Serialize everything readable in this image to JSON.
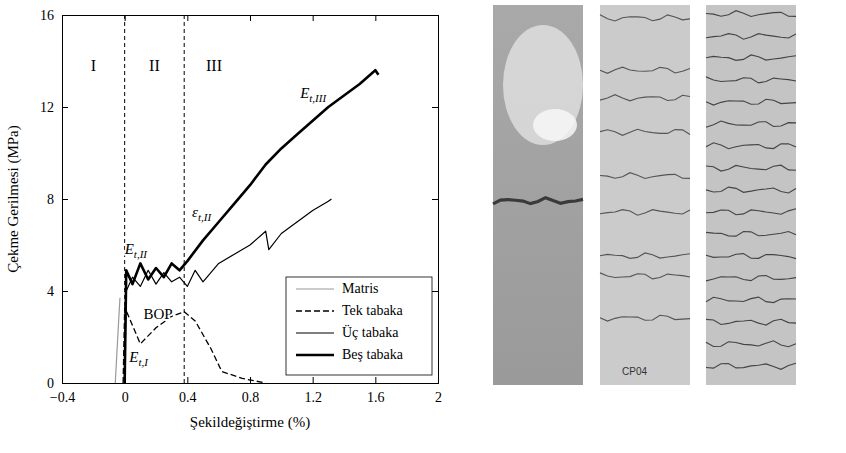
{
  "chart_data": {
    "type": "line",
    "xlabel": "Şekildeğiştirme (%)",
    "ylabel": "Çekme Gerilmesi (MPa)",
    "xlim": [
      -0.4,
      2
    ],
    "ylim": [
      0,
      16
    ],
    "xticks": [
      {
        "value": -0.4,
        "label": "−0.4"
      },
      0,
      0.4,
      0.8,
      1.2,
      1.6,
      2
    ],
    "yticks": [
      0,
      4,
      8,
      12,
      16
    ],
    "legend": "lower right",
    "regions": [
      "I",
      "II",
      "III"
    ],
    "region_bounds": [
      0,
      0.38
    ],
    "annotations": [
      {
        "text": "E",
        "subscript": "t,III",
        "x": 1.12,
        "y": 12.4
      },
      {
        "text": "ε",
        "subscript": "t,II",
        "x": 0.43,
        "y": 7.2
      },
      {
        "text": "E",
        "subscript": "t,II",
        "x": 0.0,
        "y": 5.6
      },
      {
        "text": "BOP",
        "x": 0.12,
        "y": 2.8
      },
      {
        "text": "E",
        "subscript": "t,I",
        "x": 0.03,
        "y": 0.9
      }
    ],
    "series": [
      {
        "name": "Matris",
        "color": "#999999",
        "line_style": "solid",
        "x": [
          -0.06,
          -0.04,
          -0.03
        ],
        "values": [
          0,
          2.5,
          3.7
        ]
      },
      {
        "name": "Tek tabaka",
        "color": "#000000",
        "line_style": "dashed",
        "x": [
          -0.01,
          0,
          0.1,
          0.2,
          0.3,
          0.38,
          0.45,
          0.55,
          0.62,
          0.75,
          0.9
        ],
        "values": [
          0,
          3.3,
          1.7,
          2.4,
          2.9,
          3.1,
          2.7,
          1.5,
          0.5,
          0.2,
          0
        ]
      },
      {
        "name": "Üç tabaka",
        "color": "#000000",
        "line_style": "solid",
        "x": [
          0,
          0.01,
          0.05,
          0.1,
          0.15,
          0.2,
          0.25,
          0.3,
          0.35,
          0.4,
          0.45,
          0.5,
          0.55,
          0.6,
          0.7,
          0.8,
          0.9,
          0.92,
          1.0,
          1.1,
          1.2,
          1.3,
          1.32
        ],
        "values": [
          0,
          4.0,
          4.6,
          4.2,
          4.9,
          4.3,
          4.8,
          4.4,
          4.6,
          4.2,
          4.9,
          4.4,
          4.8,
          5.2,
          5.6,
          6.0,
          6.6,
          5.8,
          6.5,
          7.0,
          7.5,
          7.9,
          8.0
        ]
      },
      {
        "name": "Beş tabaka",
        "color": "#000000",
        "line_style": "thick",
        "x": [
          0,
          0.01,
          0.05,
          0.1,
          0.15,
          0.2,
          0.25,
          0.3,
          0.35,
          0.4,
          0.5,
          0.6,
          0.7,
          0.8,
          0.9,
          1.0,
          1.1,
          1.2,
          1.3,
          1.4,
          1.5,
          1.6,
          1.62
        ],
        "values": [
          0,
          4.9,
          4.3,
          5.2,
          4.5,
          5.0,
          4.6,
          5.2,
          4.9,
          5.3,
          6.2,
          7.0,
          7.8,
          8.6,
          9.5,
          10.2,
          10.8,
          11.4,
          12.0,
          12.5,
          13.0,
          13.6,
          13.4
        ]
      }
    ]
  },
  "photo_label": "CP04"
}
